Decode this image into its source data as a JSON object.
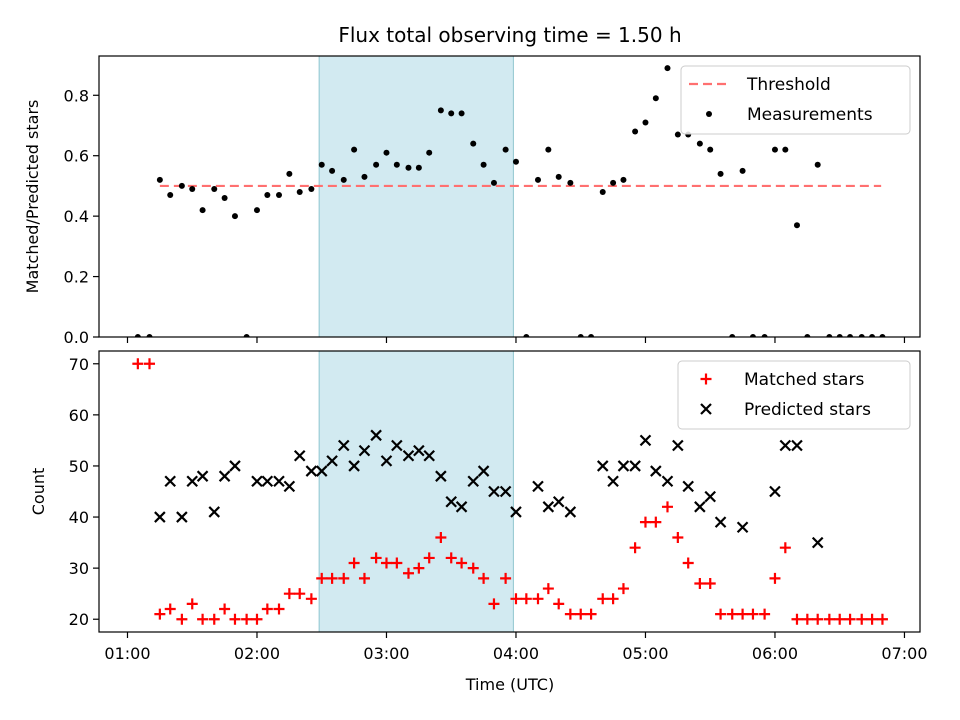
{
  "chart_data": {
    "title": "Flux total observing time = 1.50 h",
    "xlabel": "Time (UTC)",
    "x_ticks": [
      "01:00",
      "02:00",
      "03:00",
      "04:00",
      "05:00",
      "06:00",
      "07:00"
    ],
    "x_range_hours": [
      0.78,
      7.12
    ],
    "shaded_interval_hours": [
      2.48,
      3.98
    ],
    "shade_color": "#add8e6",
    "charts": [
      {
        "type": "scatter",
        "ylabel": "Matched/Predicted stars",
        "ylim": [
          0,
          0.93
        ],
        "y_ticks": [
          "0.0",
          "0.2",
          "0.4",
          "0.6",
          "0.8"
        ],
        "y_tick_values": [
          0,
          0.2,
          0.4,
          0.6,
          0.8
        ],
        "legend_position": "top-right",
        "threshold": {
          "name": "Threshold",
          "value": 0.5,
          "x_range": [
            1.25,
            6.82
          ],
          "color": "#ff7070"
        },
        "series": [
          {
            "name": "Measurements",
            "color": "#000000",
            "marker": "dot",
            "points": [
              [
                1.08,
                0
              ],
              [
                1.17,
                0
              ],
              [
                1.25,
                0.52
              ],
              [
                1.33,
                0.47
              ],
              [
                1.42,
                0.5
              ],
              [
                1.5,
                0.49
              ],
              [
                1.58,
                0.42
              ],
              [
                1.67,
                0.49
              ],
              [
                1.75,
                0.46
              ],
              [
                1.83,
                0.4
              ],
              [
                1.92,
                0
              ],
              [
                2.0,
                0.42
              ],
              [
                2.08,
                0.47
              ],
              [
                2.17,
                0.47
              ],
              [
                2.25,
                0.54
              ],
              [
                2.33,
                0.48
              ],
              [
                2.42,
                0.49
              ],
              [
                2.5,
                0.57
              ],
              [
                2.58,
                0.55
              ],
              [
                2.67,
                0.52
              ],
              [
                2.75,
                0.62
              ],
              [
                2.83,
                0.53
              ],
              [
                2.92,
                0.57
              ],
              [
                3.0,
                0.61
              ],
              [
                3.08,
                0.57
              ],
              [
                3.17,
                0.56
              ],
              [
                3.25,
                0.56
              ],
              [
                3.33,
                0.61
              ],
              [
                3.42,
                0.75
              ],
              [
                3.5,
                0.74
              ],
              [
                3.58,
                0.74
              ],
              [
                3.67,
                0.64
              ],
              [
                3.75,
                0.57
              ],
              [
                3.83,
                0.51
              ],
              [
                3.92,
                0.62
              ],
              [
                4.0,
                0.58
              ],
              [
                4.08,
                0
              ],
              [
                4.17,
                0.52
              ],
              [
                4.25,
                0.62
              ],
              [
                4.33,
                0.53
              ],
              [
                4.42,
                0.51
              ],
              [
                4.5,
                0
              ],
              [
                4.58,
                0
              ],
              [
                4.67,
                0.48
              ],
              [
                4.75,
                0.51
              ],
              [
                4.83,
                0.52
              ],
              [
                4.92,
                0.68
              ],
              [
                5.0,
                0.71
              ],
              [
                5.08,
                0.79
              ],
              [
                5.17,
                0.89
              ],
              [
                5.25,
                0.67
              ],
              [
                5.33,
                0.67
              ],
              [
                5.42,
                0.64
              ],
              [
                5.5,
                0.62
              ],
              [
                5.58,
                0.54
              ],
              [
                5.67,
                0
              ],
              [
                5.75,
                0.55
              ],
              [
                5.83,
                0
              ],
              [
                5.92,
                0
              ],
              [
                6.0,
                0.62
              ],
              [
                6.08,
                0.62
              ],
              [
                6.17,
                0.37
              ],
              [
                6.25,
                0
              ],
              [
                6.33,
                0.57
              ],
              [
                6.42,
                0
              ],
              [
                6.5,
                0
              ],
              [
                6.58,
                0
              ],
              [
                6.67,
                0
              ],
              [
                6.75,
                0
              ],
              [
                6.83,
                0
              ]
            ]
          }
        ]
      },
      {
        "type": "scatter",
        "ylabel": "Count",
        "ylim": [
          17.5,
          72.5
        ],
        "y_ticks": [
          "20",
          "30",
          "40",
          "50",
          "60",
          "70"
        ],
        "y_tick_values": [
          20,
          30,
          40,
          50,
          60,
          70
        ],
        "legend_position": "top-right",
        "series": [
          {
            "name": "Matched stars",
            "color": "#ff0000",
            "marker": "plus",
            "points": [
              [
                1.08,
                70
              ],
              [
                1.17,
                70
              ],
              [
                1.25,
                21
              ],
              [
                1.33,
                22
              ],
              [
                1.42,
                20
              ],
              [
                1.5,
                23
              ],
              [
                1.58,
                20
              ],
              [
                1.67,
                20
              ],
              [
                1.75,
                22
              ],
              [
                1.83,
                20
              ],
              [
                1.92,
                20
              ],
              [
                2.0,
                20
              ],
              [
                2.08,
                22
              ],
              [
                2.17,
                22
              ],
              [
                2.25,
                25
              ],
              [
                2.33,
                25
              ],
              [
                2.42,
                24
              ],
              [
                2.5,
                28
              ],
              [
                2.58,
                28
              ],
              [
                2.67,
                28
              ],
              [
                2.75,
                31
              ],
              [
                2.83,
                28
              ],
              [
                2.92,
                32
              ],
              [
                3.0,
                31
              ],
              [
                3.08,
                31
              ],
              [
                3.17,
                29
              ],
              [
                3.25,
                30
              ],
              [
                3.33,
                32
              ],
              [
                3.42,
                36
              ],
              [
                3.5,
                32
              ],
              [
                3.58,
                31
              ],
              [
                3.67,
                30
              ],
              [
                3.75,
                28
              ],
              [
                3.83,
                23
              ],
              [
                3.92,
                28
              ],
              [
                4.0,
                24
              ],
              [
                4.08,
                24
              ],
              [
                4.17,
                24
              ],
              [
                4.25,
                26
              ],
              [
                4.33,
                23
              ],
              [
                4.42,
                21
              ],
              [
                4.5,
                21
              ],
              [
                4.58,
                21
              ],
              [
                4.67,
                24
              ],
              [
                4.75,
                24
              ],
              [
                4.83,
                26
              ],
              [
                4.92,
                34
              ],
              [
                5.0,
                39
              ],
              [
                5.08,
                39
              ],
              [
                5.17,
                42
              ],
              [
                5.25,
                36
              ],
              [
                5.33,
                31
              ],
              [
                5.42,
                27
              ],
              [
                5.5,
                27
              ],
              [
                5.58,
                21
              ],
              [
                5.67,
                21
              ],
              [
                5.75,
                21
              ],
              [
                5.83,
                21
              ],
              [
                5.92,
                21
              ],
              [
                6.0,
                28
              ],
              [
                6.08,
                34
              ],
              [
                6.17,
                20
              ],
              [
                6.25,
                20
              ],
              [
                6.33,
                20
              ],
              [
                6.42,
                20
              ],
              [
                6.5,
                20
              ],
              [
                6.58,
                20
              ],
              [
                6.67,
                20
              ],
              [
                6.75,
                20
              ],
              [
                6.83,
                20
              ]
            ]
          },
          {
            "name": "Predicted stars",
            "color": "#000000",
            "marker": "x",
            "points": [
              [
                1.25,
                40
              ],
              [
                1.33,
                47
              ],
              [
                1.42,
                40
              ],
              [
                1.5,
                47
              ],
              [
                1.58,
                48
              ],
              [
                1.67,
                41
              ],
              [
                1.75,
                48
              ],
              [
                1.83,
                50
              ],
              [
                2.0,
                47
              ],
              [
                2.08,
                47
              ],
              [
                2.17,
                47
              ],
              [
                2.25,
                46
              ],
              [
                2.33,
                52
              ],
              [
                2.42,
                49
              ],
              [
                2.5,
                49
              ],
              [
                2.58,
                51
              ],
              [
                2.67,
                54
              ],
              [
                2.75,
                50
              ],
              [
                2.83,
                53
              ],
              [
                2.92,
                56
              ],
              [
                3.0,
                51
              ],
              [
                3.08,
                54
              ],
              [
                3.17,
                52
              ],
              [
                3.25,
                53
              ],
              [
                3.33,
                52
              ],
              [
                3.42,
                48
              ],
              [
                3.5,
                43
              ],
              [
                3.58,
                42
              ],
              [
                3.67,
                47
              ],
              [
                3.75,
                49
              ],
              [
                3.83,
                45
              ],
              [
                3.92,
                45
              ],
              [
                4.0,
                41
              ],
              [
                4.17,
                46
              ],
              [
                4.25,
                42
              ],
              [
                4.33,
                43
              ],
              [
                4.42,
                41
              ],
              [
                4.67,
                50
              ],
              [
                4.75,
                47
              ],
              [
                4.83,
                50
              ],
              [
                4.92,
                50
              ],
              [
                5.0,
                55
              ],
              [
                5.08,
                49
              ],
              [
                5.17,
                47
              ],
              [
                5.25,
                54
              ],
              [
                5.33,
                46
              ],
              [
                5.42,
                42
              ],
              [
                5.5,
                44
              ],
              [
                5.58,
                39
              ],
              [
                5.75,
                38
              ],
              [
                6.0,
                45
              ],
              [
                6.08,
                54
              ],
              [
                6.17,
                54
              ],
              [
                6.33,
                35
              ]
            ]
          }
        ]
      }
    ]
  }
}
